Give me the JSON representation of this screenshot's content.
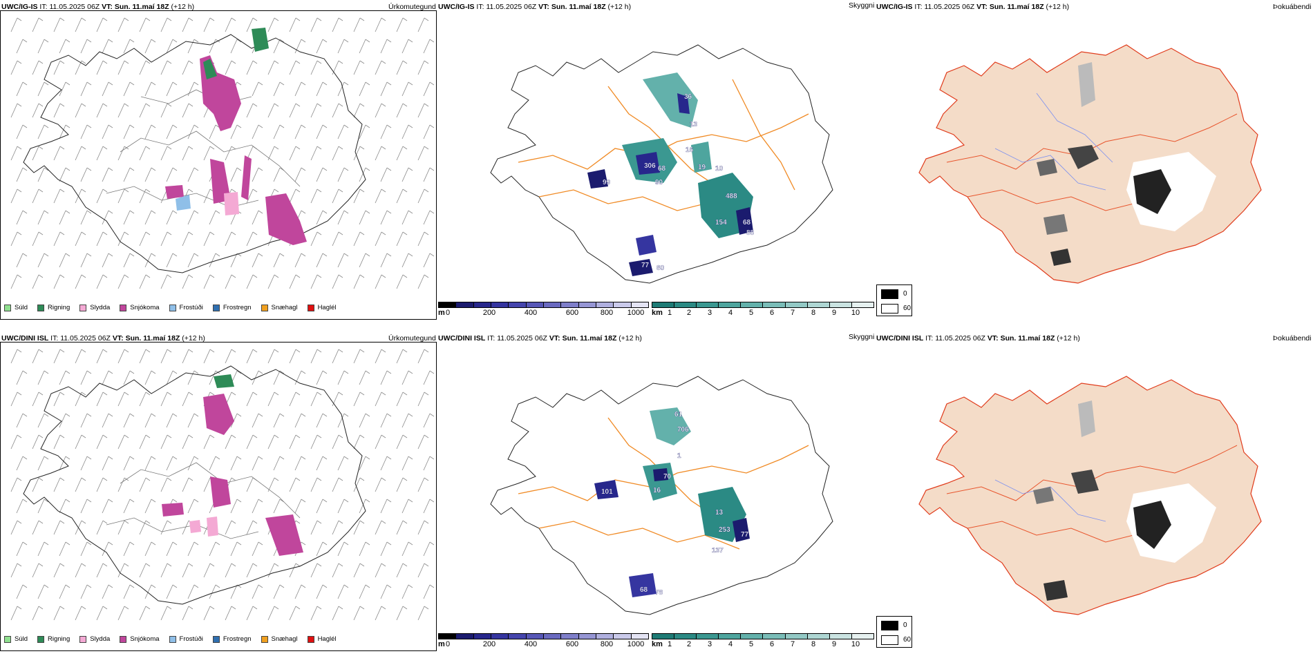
{
  "rows": [
    {
      "model": "UWC/IG-IS",
      "it_label": "IT:",
      "it_value": "11.05.2025 06Z",
      "vt_label": "VT:",
      "vt_value": "Sun. 11.maí 18Z",
      "lead": "(+12 h)"
    },
    {
      "model": "UWC/DINI ISL",
      "it_label": "IT:",
      "it_value": "11.05.2025 06Z",
      "vt_label": "VT:",
      "vt_value": "Sun. 11.maí 18Z",
      "lead": "(+12 h)"
    }
  ],
  "panels": {
    "precip_type": "Úrkomutegund",
    "visibility": "Skyggni",
    "fog_index": "Þokuábendi"
  },
  "precip_legend": [
    {
      "label": "Súld",
      "color": "#8fe08f"
    },
    {
      "label": "Rigning",
      "color": "#2e8b57"
    },
    {
      "label": "Slydda",
      "color": "#f4a9d4"
    },
    {
      "label": "Snjókoma",
      "color": "#c0469c"
    },
    {
      "label": "Frostúði",
      "color": "#8fbfe8"
    },
    {
      "label": "Frostregn",
      "color": "#2f6fb0"
    },
    {
      "label": "Snæhagl",
      "color": "#f0a020"
    },
    {
      "label": "Haglél",
      "color": "#e01010"
    }
  ],
  "visibility_scale_m": {
    "unit": "m",
    "ticks": [
      "0",
      "200",
      "400",
      "600",
      "800",
      "1000"
    ],
    "colors": [
      "#000000",
      "#1b1b6e",
      "#27278c",
      "#3535a0",
      "#4545ad",
      "#5757b7",
      "#6a6ac0",
      "#7f7fca",
      "#9696d4",
      "#b0b0df",
      "#cacaea",
      "#e4e4f4"
    ]
  },
  "visibility_scale_km": {
    "unit": "km",
    "ticks": [
      "1",
      "2",
      "3",
      "4",
      "5",
      "6",
      "7",
      "8",
      "9",
      "10"
    ],
    "colors": [
      "#1e7b75",
      "#2b8a84",
      "#3b9891",
      "#4ea59e",
      "#63b1ab",
      "#7abdb8",
      "#93c9c5",
      "#aed6d3",
      "#cae3e1",
      "#e6f1f0"
    ]
  },
  "fog_legend": {
    "top_label": "0",
    "bottom_label": "60"
  },
  "visibility_values": [
    [
      "36",
      "13",
      "16",
      "306",
      "68",
      "99",
      "90",
      "19",
      "10",
      "488",
      "154",
      "68",
      "88",
      "77",
      "80"
    ],
    [
      "61",
      "706",
      "1",
      "70",
      "101",
      "16",
      "13",
      "253",
      "137",
      "77",
      "68",
      "78"
    ]
  ]
}
